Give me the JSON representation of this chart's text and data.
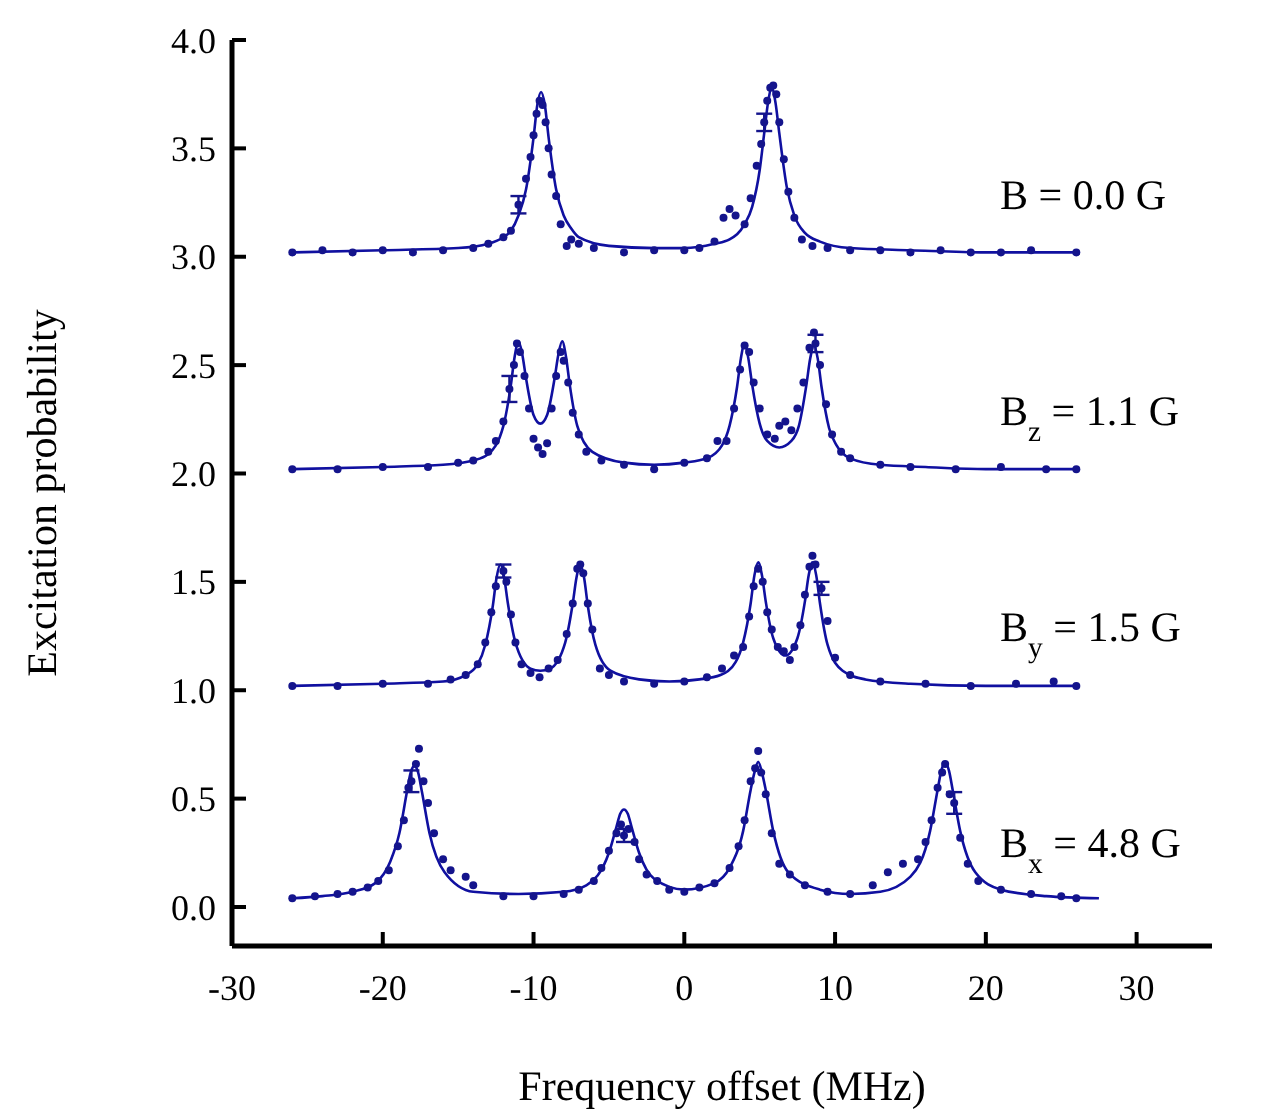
{
  "chart_data": {
    "type": "scatter",
    "xlabel": "Frequency offset (MHz)",
    "ylabel": "Excitation probability",
    "xlim": [
      -30,
      35
    ],
    "ylim": [
      -0.18,
      4.0
    ],
    "xticks": [
      -30,
      -20,
      -10,
      0,
      10,
      20,
      30
    ],
    "yticks": [
      {
        "value": 0,
        "label": "0.0"
      },
      {
        "value": 0.5,
        "label": "0.5"
      },
      {
        "value": 1,
        "label": "1.0"
      },
      {
        "value": 1.5,
        "label": "1.5"
      },
      {
        "value": 2,
        "label": "2.0"
      },
      {
        "value": 2.5,
        "label": "2.5"
      },
      {
        "value": 3,
        "label": "3.0"
      },
      {
        "value": 3.5,
        "label": "3.5"
      },
      {
        "value": 4,
        "label": "4.0"
      }
    ],
    "annotations": [
      "B = 0.0 G",
      "B$_{z}$ = 1.1 G",
      "B$_{y}$ = 1.5 G",
      "B$_{x}$ = 4.8 G"
    ],
    "series": [
      {
        "type": "line",
        "marker": "none",
        "color": "#1010a0",
        "x": [
          -26,
          -20,
          -15,
          -13,
          -12,
          -11.5,
          -11,
          -10.5,
          -10,
          -9.75,
          -9.5,
          -9.25,
          -9,
          -8.5,
          -8,
          -7.5,
          -7,
          -5,
          -2,
          0,
          2,
          3,
          4,
          4.5,
          5,
          5.3,
          5.55,
          5.8,
          6.05,
          6.3,
          6.8,
          7.3,
          8,
          9,
          11,
          15,
          20,
          26
        ],
        "values": [
          3.02,
          3.03,
          3.04,
          3.06,
          3.09,
          3.12,
          3.19,
          3.31,
          3.55,
          3.7,
          3.76,
          3.7,
          3.55,
          3.31,
          3.19,
          3.13,
          3.09,
          3.05,
          3.04,
          3.04,
          3.06,
          3.08,
          3.15,
          3.23,
          3.4,
          3.57,
          3.71,
          3.78,
          3.71,
          3.57,
          3.32,
          3.19,
          3.11,
          3.07,
          3.04,
          3.03,
          3.02,
          3.02
        ]
      },
      {
        "marker": "circle",
        "color": "#14148c",
        "x": [
          -26,
          -24,
          -22,
          -20,
          -18,
          -16,
          -14,
          -13,
          -12,
          -11.5,
          -10.5,
          -10.2,
          -10,
          -9.8,
          -9.6,
          -9.4,
          -9.2,
          -9,
          -8.8,
          -8.5,
          -8.2,
          -7.8,
          -7.5,
          -7,
          -6,
          -4,
          -2,
          0,
          1,
          2,
          2.6,
          3,
          3.4,
          4,
          4.4,
          4.8,
          5.1,
          5.5,
          5.7,
          5.9,
          6.1,
          6.3,
          6.6,
          6.9,
          7.3,
          7.8,
          8.5,
          9.5,
          11,
          13,
          15,
          17,
          19,
          21,
          23,
          26
        ],
        "values": [
          3.02,
          3.03,
          3.02,
          3.03,
          3.02,
          3.03,
          3.04,
          3.06,
          3.09,
          3.12,
          3.36,
          3.46,
          3.56,
          3.66,
          3.72,
          3.7,
          3.62,
          3.5,
          3.38,
          3.28,
          3.15,
          3.05,
          3.08,
          3.06,
          3.04,
          3.02,
          3.03,
          3.03,
          3.04,
          3.07,
          3.18,
          3.22,
          3.19,
          3.15,
          3.27,
          3.42,
          3.52,
          3.72,
          3.78,
          3.79,
          3.75,
          3.62,
          3.45,
          3.3,
          3.18,
          3.08,
          3.05,
          3.04,
          3.03,
          3.03,
          3.02,
          3.03,
          3.02,
          3.02,
          3.03,
          3.02
        ]
      },
      {
        "marker": "circle",
        "color": "#14148c",
        "x": [
          -11,
          5.3
        ],
        "values": [
          3.24,
          3.62
        ],
        "errors": [
          0.04,
          0.04
        ]
      },
      {
        "type": "line",
        "marker": "none",
        "color": "#1010a0",
        "x": [
          -26,
          -20,
          -16,
          -14,
          -13,
          -12,
          -11.5,
          -11.25,
          -11,
          -10.75,
          -10.5,
          -10,
          -9.55,
          -9.1,
          -8.6,
          -8.35,
          -8.1,
          -7.85,
          -7.6,
          -7.1,
          -6.1,
          -4,
          -2,
          0,
          1.5,
          2.5,
          3,
          3.5,
          3.75,
          4,
          4.25,
          4.5,
          5,
          5.5,
          6.3,
          7.1,
          7.6,
          8.1,
          8.35,
          8.6,
          8.85,
          9.1,
          9.6,
          10.1,
          11,
          13,
          16,
          20,
          26
        ],
        "values": [
          2.02,
          2.03,
          2.04,
          2.06,
          2.09,
          2.22,
          2.41,
          2.54,
          2.61,
          2.55,
          2.44,
          2.27,
          2.23,
          2.27,
          2.44,
          2.55,
          2.61,
          2.54,
          2.41,
          2.22,
          2.1,
          2.05,
          2.04,
          2.05,
          2.07,
          2.13,
          2.22,
          2.4,
          2.53,
          2.6,
          2.53,
          2.41,
          2.23,
          2.15,
          2.12,
          2.15,
          2.22,
          2.41,
          2.53,
          2.59,
          2.53,
          2.4,
          2.21,
          2.13,
          2.07,
          2.04,
          2.03,
          2.02,
          2.02
        ]
      },
      {
        "marker": "circle",
        "color": "#14148c",
        "x": [
          -26,
          -23,
          -20,
          -17,
          -15,
          -14,
          -13,
          -12.5,
          -12,
          -11.3,
          -11.1,
          -10.9,
          -10.6,
          -10.3,
          -10,
          -9.7,
          -9.4,
          -9.1,
          -8.8,
          -8.5,
          -8.2,
          -8,
          -7.7,
          -7.4,
          -7,
          -6.5,
          -5.5,
          -4,
          -2,
          0,
          1.5,
          2.2,
          2.8,
          3.3,
          3.7,
          4,
          4.3,
          4.6,
          5,
          5.5,
          6,
          6.3,
          6.7,
          7.1,
          7.5,
          7.9,
          8.3,
          8.6,
          9,
          9.4,
          9.8,
          10.4,
          11,
          13,
          15,
          18,
          21,
          24,
          26
        ],
        "values": [
          2.02,
          2.02,
          2.03,
          2.03,
          2.05,
          2.06,
          2.1,
          2.15,
          2.24,
          2.5,
          2.6,
          2.56,
          2.45,
          2.3,
          2.16,
          2.12,
          2.09,
          2.14,
          2.3,
          2.45,
          2.56,
          2.52,
          2.42,
          2.28,
          2.18,
          2.1,
          2.06,
          2.04,
          2.02,
          2.05,
          2.07,
          2.15,
          2.15,
          2.3,
          2.48,
          2.59,
          2.56,
          2.42,
          2.3,
          2.18,
          2.16,
          2.22,
          2.24,
          2.2,
          2.3,
          2.42,
          2.58,
          2.65,
          2.5,
          2.32,
          2.18,
          2.1,
          2.07,
          2.04,
          2.03,
          2.02,
          2.03,
          2.02,
          2.02
        ]
      },
      {
        "marker": "circle",
        "color": "#14148c",
        "x": [
          -11.6,
          8.7
        ],
        "values": [
          2.39,
          2.6
        ],
        "errors": [
          0.06,
          0.04
        ]
      },
      {
        "type": "line",
        "marker": "none",
        "color": "#1010a0",
        "x": [
          -26,
          -20,
          -16,
          -14.5,
          -13.7,
          -13.2,
          -12.7,
          -12.45,
          -12.2,
          -11.95,
          -11.7,
          -11.2,
          -10.2,
          -9.55,
          -8.9,
          -7.9,
          -7.4,
          -7.15,
          -6.9,
          -6.65,
          -6.4,
          -5.9,
          -4.9,
          -3,
          -1,
          1,
          2.4,
          3.4,
          3.9,
          4.4,
          4.65,
          4.9,
          5.15,
          5.4,
          5.9,
          6.7,
          7.5,
          8,
          8.25,
          8.5,
          8.75,
          9,
          9.5,
          10.5,
          12,
          15,
          20,
          26
        ],
        "values": [
          1.02,
          1.03,
          1.04,
          1.07,
          1.12,
          1.21,
          1.39,
          1.52,
          1.58,
          1.52,
          1.4,
          1.22,
          1.1,
          1.09,
          1.1,
          1.22,
          1.4,
          1.52,
          1.58,
          1.52,
          1.39,
          1.21,
          1.09,
          1.05,
          1.04,
          1.05,
          1.07,
          1.13,
          1.22,
          1.4,
          1.53,
          1.59,
          1.53,
          1.41,
          1.24,
          1.16,
          1.24,
          1.41,
          1.53,
          1.59,
          1.53,
          1.4,
          1.21,
          1.09,
          1.05,
          1.03,
          1.02,
          1.02
        ]
      },
      {
        "marker": "circle",
        "color": "#14148c",
        "x": [
          -26,
          -23,
          -20,
          -17,
          -15.5,
          -14.5,
          -13.7,
          -13.2,
          -12.8,
          -12.5,
          -11.8,
          -11.5,
          -11.2,
          -10.8,
          -10.2,
          -9.6,
          -9,
          -8.4,
          -7.8,
          -7.4,
          -7.1,
          -6.9,
          -6.7,
          -6.4,
          -6.1,
          -5.6,
          -5,
          -4,
          -2,
          0,
          1.5,
          2.5,
          3.3,
          3.9,
          4.3,
          4.6,
          4.9,
          5.2,
          5.5,
          5.8,
          6.2,
          6.6,
          7,
          7.3,
          7.7,
          8,
          8.3,
          8.5,
          8.7,
          9.5,
          10,
          11,
          13,
          16,
          19,
          22,
          24.5,
          26
        ],
        "values": [
          1.02,
          1.02,
          1.03,
          1.03,
          1.05,
          1.07,
          1.12,
          1.22,
          1.36,
          1.48,
          1.5,
          1.35,
          1.22,
          1.12,
          1.08,
          1.06,
          1.1,
          1.14,
          1.26,
          1.4,
          1.56,
          1.58,
          1.54,
          1.4,
          1.28,
          1.1,
          1.07,
          1.04,
          1.03,
          1.04,
          1.06,
          1.1,
          1.16,
          1.2,
          1.34,
          1.48,
          1.56,
          1.5,
          1.36,
          1.28,
          1.2,
          1.18,
          1.14,
          1.2,
          1.3,
          1.44,
          1.57,
          1.62,
          1.58,
          1.32,
          1.15,
          1.07,
          1.04,
          1.03,
          1.02,
          1.03,
          1.04,
          1.02
        ]
      },
      {
        "marker": "circle",
        "color": "#14148c",
        "x": [
          -12,
          9.1
        ],
        "values": [
          1.55,
          1.47
        ],
        "errors": [
          0.03,
          0.03
        ]
      },
      {
        "type": "line",
        "marker": "none",
        "color": "#1010a0",
        "x": [
          -26,
          -24,
          -22,
          -20.5,
          -19.5,
          -18.9,
          -18.4,
          -18.15,
          -17.9,
          -17.65,
          -17.4,
          -16.9,
          -15.9,
          -14,
          -11,
          -8,
          -6.5,
          -5,
          -4.5,
          -4.25,
          -4,
          -3.75,
          -3.5,
          -3,
          -2,
          0,
          2,
          3,
          3.9,
          4.4,
          4.65,
          4.9,
          5.15,
          5.4,
          5.9,
          6.9,
          9,
          11,
          13,
          15,
          16.3,
          16.8,
          17.05,
          17.3,
          17.55,
          17.8,
          18.3,
          19.3,
          21,
          24,
          27.5
        ],
        "values": [
          0.04,
          0.05,
          0.07,
          0.11,
          0.21,
          0.34,
          0.53,
          0.62,
          0.65,
          0.62,
          0.53,
          0.34,
          0.16,
          0.07,
          0.06,
          0.07,
          0.1,
          0.25,
          0.37,
          0.43,
          0.45,
          0.43,
          0.37,
          0.25,
          0.13,
          0.08,
          0.11,
          0.18,
          0.35,
          0.54,
          0.62,
          0.67,
          0.62,
          0.54,
          0.35,
          0.16,
          0.08,
          0.06,
          0.07,
          0.14,
          0.35,
          0.54,
          0.63,
          0.67,
          0.63,
          0.54,
          0.35,
          0.16,
          0.08,
          0.05,
          0.04
        ]
      },
      {
        "marker": "circle",
        "color": "#14148c",
        "x": [
          -26,
          -24.5,
          -23,
          -22,
          -21,
          -20.3,
          -19.6,
          -19,
          -18.6,
          -18.3,
          -17.8,
          -17.6,
          -17.3,
          -17,
          -16.6,
          -16,
          -15.5,
          -14.5,
          -14,
          -12,
          -10,
          -8,
          -7,
          -6,
          -5.5,
          -5,
          -4.5,
          -4.2,
          -3.7,
          -3.3,
          -3,
          -2.5,
          -1.8,
          -1,
          0,
          1,
          2,
          3,
          3.6,
          4,
          4.4,
          4.7,
          4.9,
          5.1,
          5.4,
          5.8,
          6.3,
          7,
          8,
          9.5,
          11,
          12.5,
          13.5,
          14.5,
          15.5,
          16,
          16.4,
          16.8,
          17.1,
          17.3,
          17.6,
          18.3,
          18.8,
          19.5,
          21,
          23,
          25,
          26
        ],
        "values": [
          0.04,
          0.05,
          0.06,
          0.07,
          0.09,
          0.12,
          0.17,
          0.28,
          0.4,
          0.55,
          0.66,
          0.73,
          0.58,
          0.48,
          0.34,
          0.22,
          0.17,
          0.14,
          0.1,
          0.05,
          0.05,
          0.06,
          0.08,
          0.12,
          0.18,
          0.26,
          0.34,
          0.38,
          0.36,
          0.3,
          0.22,
          0.15,
          0.12,
          0.08,
          0.07,
          0.09,
          0.11,
          0.18,
          0.28,
          0.4,
          0.58,
          0.64,
          0.72,
          0.62,
          0.52,
          0.34,
          0.2,
          0.15,
          0.1,
          0.07,
          0.06,
          0.1,
          0.16,
          0.2,
          0.22,
          0.3,
          0.4,
          0.55,
          0.62,
          0.66,
          0.52,
          0.32,
          0.2,
          0.12,
          0.08,
          0.06,
          0.05,
          0.04
        ]
      },
      {
        "marker": "circle",
        "color": "#14148c",
        "x": [
          -18.1,
          -4,
          17.9
        ],
        "values": [
          0.58,
          0.33,
          0.48
        ],
        "errors": [
          0.05,
          0.03,
          0.05
        ]
      }
    ]
  }
}
